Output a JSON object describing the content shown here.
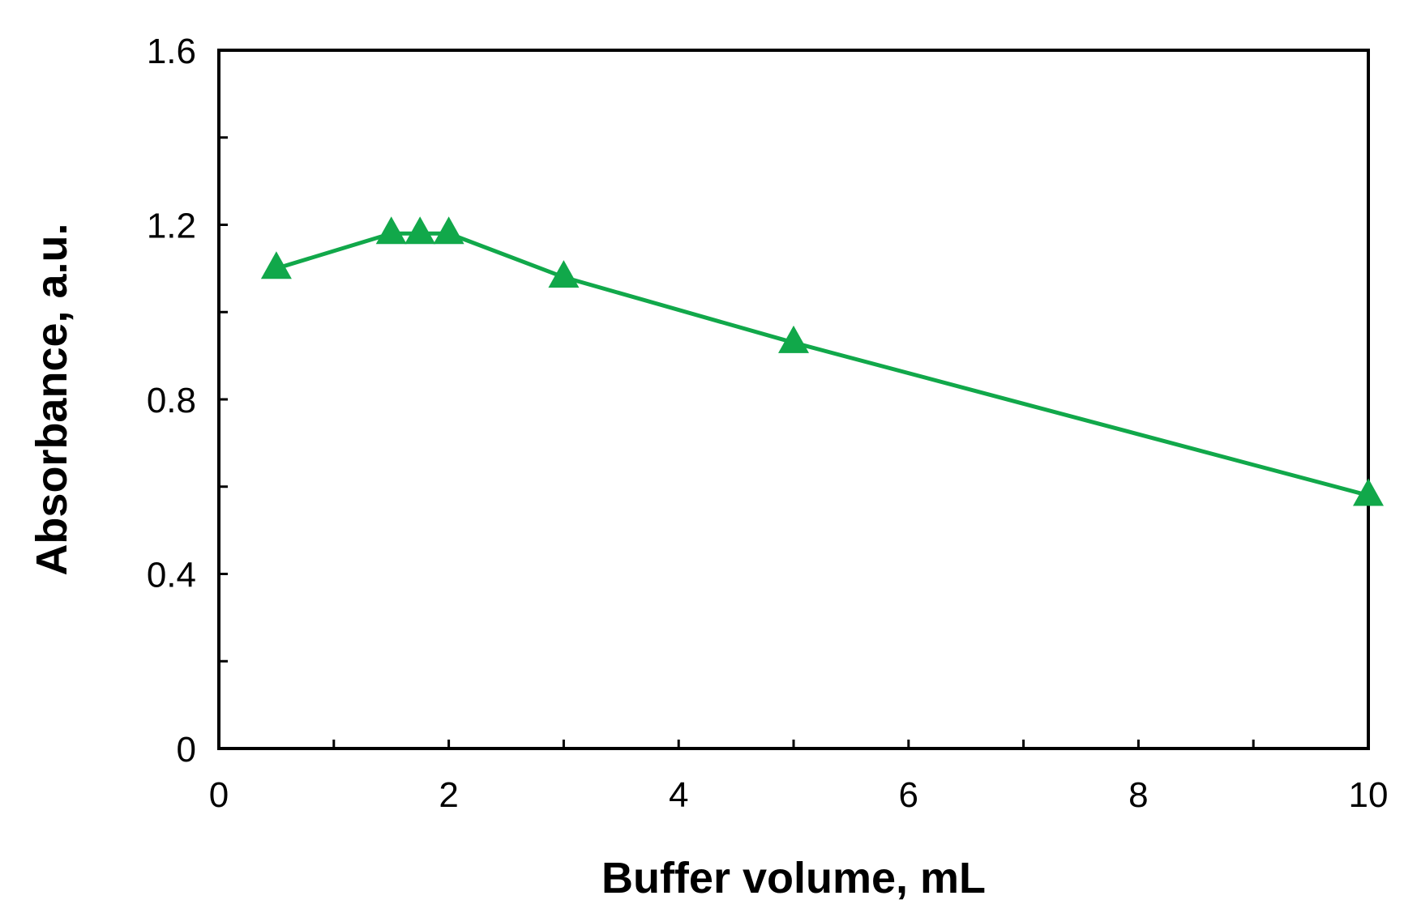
{
  "chart_data": {
    "type": "line",
    "xlabel": "Buffer volume, mL",
    "ylabel": "Absorbance, a.u.",
    "xlim": [
      0,
      10
    ],
    "ylim": [
      0,
      1.6
    ],
    "x_ticks": [
      0,
      2,
      4,
      6,
      8,
      10
    ],
    "x_tick_labels": [
      "0",
      "2",
      "4",
      "6",
      "8",
      "10"
    ],
    "x_minor_ticks": [
      1,
      3,
      5,
      7,
      9
    ],
    "y_ticks": [
      0,
      0.4,
      0.8,
      1.2,
      1.6
    ],
    "y_tick_labels": [
      "0",
      "0.4",
      "0.8",
      "1.2",
      "1.6"
    ],
    "y_minor_ticks": [
      0.2,
      0.6,
      1.0,
      1.4
    ],
    "grid": false,
    "legend": "none",
    "series": [
      {
        "marker": "triangle",
        "color": "#11a84a",
        "x": [
          0.5,
          1.5,
          1.75,
          2.0,
          3.0,
          5.0,
          10.0
        ],
        "y": [
          1.1,
          1.18,
          1.18,
          1.18,
          1.08,
          0.93,
          0.58
        ]
      }
    ]
  }
}
